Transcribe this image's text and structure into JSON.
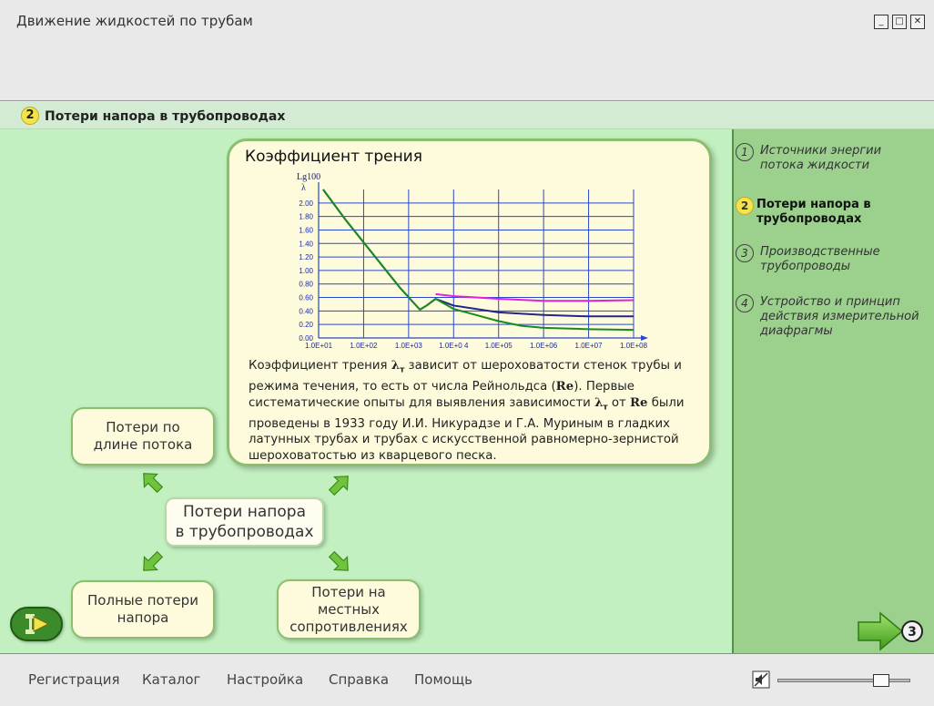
{
  "window": {
    "title": "Движение жидкостей по трубам"
  },
  "section": {
    "number": "2",
    "title": "Потери напора в трубопроводах"
  },
  "card": {
    "title": "Коэффициент трения",
    "text_parts": [
      "Коэффициент трения ",
      "λ",
      "т",
      " зависит от шероховатости стенок трубы и режима течения, то есть от числа Рейнольдса (",
      "Re",
      "). Первые систематические опыты для выявления зависимости ",
      "λ",
      "т",
      " от ",
      "Re",
      " были проведены в 1933 году И.И. Никурадзе и Г.А. Муриным в гладких латунных трубах и трубах с искусственной равномерно-зернистой шероховатостью из кварцевого песка."
    ]
  },
  "chart_data": {
    "type": "line",
    "ylabel_lines": [
      "Lg100",
      "λ"
    ],
    "x_ticks": [
      "1.0E+01",
      "1.0E+02",
      "1.0E+03",
      "1.0E+0 4",
      "1.0E+05",
      "1.0E+06",
      "1.0E+07",
      "1.0E+08"
    ],
    "y_ticks": [
      "0.00",
      "0.20",
      "0.40",
      "0.60",
      "0.80",
      "1.00",
      "1.20",
      "1.40",
      "1.60",
      "1.80",
      "2.00"
    ],
    "xlim": [
      1,
      8
    ],
    "ylim": [
      0,
      2.2
    ],
    "series": [
      {
        "color": "#22258a",
        "x": [
          1.1,
          1.6,
          2.2,
          2.8,
          3.25,
          3.4,
          3.6,
          4.0,
          5.0,
          6.0,
          7.0,
          8.0
        ],
        "y": [
          2.2,
          1.75,
          1.25,
          0.75,
          0.42,
          0.48,
          0.58,
          0.48,
          0.38,
          0.34,
          0.32,
          0.32
        ]
      },
      {
        "color": "#e020e0",
        "x": [
          3.6,
          4.0,
          5.0,
          6.0,
          7.0,
          8.0
        ],
        "y": [
          0.65,
          0.62,
          0.58,
          0.55,
          0.55,
          0.56
        ]
      },
      {
        "color": "#1a8a20",
        "x": [
          1.1,
          1.6,
          2.2,
          2.8,
          3.25,
          3.4,
          3.6,
          4.0,
          5.0,
          5.5,
          6.0,
          7.0,
          8.0
        ],
        "y": [
          2.2,
          1.75,
          1.25,
          0.75,
          0.42,
          0.48,
          0.58,
          0.43,
          0.25,
          0.18,
          0.15,
          0.13,
          0.12
        ]
      }
    ],
    "grid": true,
    "colors": {
      "grid": "#2a48c8",
      "axis": "#2a48c8",
      "ticks": "#1a2a9a"
    }
  },
  "mindmap": {
    "center": [
      "Потери напора",
      "в трубопроводах"
    ],
    "top_left": [
      "Потери по",
      "длине потока"
    ],
    "bottom_left": [
      "Полные потери",
      "напора"
    ],
    "bottom_right": [
      "Потери на",
      "местных",
      "сопротивлениях"
    ]
  },
  "sidebar": {
    "items": [
      {
        "num": "1",
        "lines": [
          "Источники энергии",
          "потока жидкости"
        ]
      },
      {
        "num": "2",
        "lines": [
          "Потери напора в",
          "трубопроводах"
        ],
        "active": true
      },
      {
        "num": "3",
        "lines": [
          "Производственные",
          "трубопроводы"
        ]
      },
      {
        "num": "4",
        "lines": [
          "Устройство и принцип",
          "действия измерительной",
          "диафрагмы"
        ]
      }
    ],
    "next_num": "3"
  },
  "menu": {
    "items": [
      "Регистрация",
      "Каталог",
      "Настройка",
      "Справка",
      "Помощь"
    ]
  },
  "colors": {
    "accent": "#6fbf3a",
    "yellow_badge": "#f4e34a"
  }
}
